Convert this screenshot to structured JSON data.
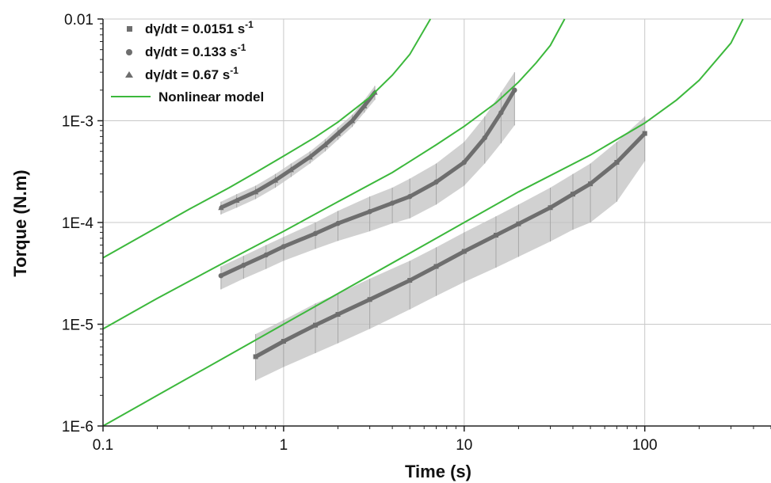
{
  "chart_data": {
    "type": "scatter",
    "title": "",
    "xlabel": "Time (s)",
    "ylabel": "Torque (N.m)",
    "xscale": "log",
    "yscale": "log",
    "xlim": [
      0.1,
      500
    ],
    "ylim": [
      1e-06,
      0.01
    ],
    "grid": true,
    "legend_position": "top-left",
    "x_ticks": [
      {
        "value": 0.1,
        "label": "0.1"
      },
      {
        "value": 1,
        "label": "1"
      },
      {
        "value": 10,
        "label": "10"
      },
      {
        "value": 100,
        "label": "100"
      }
    ],
    "y_ticks": [
      {
        "value": 1e-06,
        "label": "1E-6"
      },
      {
        "value": 1e-05,
        "label": "1E-5"
      },
      {
        "value": 0.0001,
        "label": "1E-4"
      },
      {
        "value": 0.001,
        "label": "1E-3"
      },
      {
        "value": 0.01,
        "label": "0.01"
      }
    ],
    "legend": [
      {
        "label_prefix": "dγ/dt = 0.0151 s",
        "label_sup": "-1",
        "marker": "square"
      },
      {
        "label_prefix": "dγ/dt = 0.133 s",
        "label_sup": "-1",
        "marker": "circle"
      },
      {
        "label_prefix": "dγ/dt = 0.67 s",
        "label_sup": "-1",
        "marker": "triangle"
      },
      {
        "label_prefix": "Nonlinear model",
        "label_sup": "",
        "marker": "line"
      }
    ],
    "colors": {
      "data": "#6e6e6e",
      "error_band": "#c2c2c2",
      "model": "#3cb83c",
      "grid": "#c8c8c8"
    },
    "series": [
      {
        "name": "dγ/dt = 0.67 s-1",
        "marker": "triangle",
        "x": [
          0.45,
          0.55,
          0.7,
          0.9,
          1.1,
          1.4,
          1.7,
          2.0,
          2.4,
          2.8,
          3.2
        ],
        "y": [
          0.00014,
          0.000165,
          0.0002,
          0.00026,
          0.00033,
          0.00044,
          0.00058,
          0.00075,
          0.001,
          0.0014,
          0.0019
        ],
        "y_low": [
          0.00012,
          0.00014,
          0.00017,
          0.00022,
          0.00028,
          0.00038,
          0.0005,
          0.00065,
          0.00087,
          0.0012,
          0.0016
        ],
        "y_high": [
          0.00016,
          0.00019,
          0.00023,
          0.0003,
          0.00038,
          0.0005,
          0.00066,
          0.00086,
          0.00115,
          0.0016,
          0.0022
        ]
      },
      {
        "name": "dγ/dt = 0.133 s-1",
        "marker": "circle",
        "x": [
          0.45,
          0.6,
          0.8,
          1.0,
          1.5,
          2.0,
          3.0,
          4.0,
          5.0,
          7.0,
          10,
          13,
          16,
          19
        ],
        "y": [
          3e-05,
          3.8e-05,
          4.8e-05,
          5.8e-05,
          7.8e-05,
          9.8e-05,
          0.000128,
          0.000155,
          0.00018,
          0.00025,
          0.00039,
          0.00068,
          0.0012,
          0.002
        ],
        "y_low": [
          2.2e-05,
          2.8e-05,
          3.5e-05,
          4.2e-05,
          5.5e-05,
          6.6e-05,
          8.2e-05,
          9.8e-05,
          0.00011,
          0.00015,
          0.00023,
          0.00038,
          0.0006,
          0.0009
        ],
        "y_high": [
          3.7e-05,
          4.7e-05,
          6e-05,
          7.2e-05,
          0.0001,
          0.00013,
          0.00018,
          0.00022,
          0.00027,
          0.00038,
          0.00062,
          0.0011,
          0.0019,
          0.003
        ]
      },
      {
        "name": "dγ/dt = 0.0151 s-1",
        "marker": "square",
        "x": [
          0.7,
          1.0,
          1.5,
          2.0,
          3.0,
          5.0,
          7.0,
          10,
          15,
          20,
          30,
          40,
          50,
          70,
          100
        ],
        "y": [
          4.8e-06,
          6.8e-06,
          9.8e-06,
          1.25e-05,
          1.75e-05,
          2.7e-05,
          3.7e-05,
          5.2e-05,
          7.5e-05,
          9.7e-05,
          0.00014,
          0.00019,
          0.00024,
          0.00039,
          0.00075
        ],
        "y_low": [
          2.8e-06,
          3.8e-06,
          5.2e-06,
          6.5e-06,
          9e-06,
          1.4e-05,
          1.9e-05,
          2.6e-05,
          3.6e-05,
          4.6e-05,
          6.5e-05,
          8.5e-05,
          0.0001,
          0.00016,
          0.0004
        ],
        "y_high": [
          8e-06,
          1.1e-05,
          1.6e-05,
          2e-05,
          2.8e-05,
          4.2e-05,
          5.7e-05,
          8e-05,
          0.000115,
          0.00015,
          0.00022,
          0.0003,
          0.00038,
          0.00062,
          0.0011
        ]
      },
      {
        "name": "Nonlinear model",
        "marker": "line",
        "curves": [
          {
            "x": [
              0.1,
              0.2,
              0.3,
              0.5,
              0.7,
              1.0,
              1.5,
              2.0,
              3.0,
              4.0,
              5.0,
              6.5
            ],
            "y": [
              4.5e-05,
              9e-05,
              0.000135,
              0.00022,
              0.00031,
              0.00045,
              0.00069,
              0.00097,
              0.0017,
              0.0028,
              0.0045,
              0.01
            ]
          },
          {
            "x": [
              0.1,
              0.2,
              0.5,
              1.0,
              2.0,
              4.0,
              7.0,
              10,
              15,
              20,
              25,
              30,
              36
            ],
            "y": [
              9e-06,
              1.8e-05,
              4.3e-05,
              8.2e-05,
              0.00016,
              0.00031,
              0.00058,
              0.00088,
              0.0015,
              0.0024,
              0.0037,
              0.0055,
              0.01
            ]
          },
          {
            "x": [
              0.1,
              0.2,
              0.5,
              1.0,
              2.0,
              5.0,
              10,
              20,
              50,
              100,
              150,
              200,
              300,
              350
            ],
            "y": [
              1e-06,
              2e-06,
              5e-06,
              1e-05,
              2e-05,
              5e-05,
              0.0001,
              0.0002,
              0.00046,
              0.00095,
              0.0016,
              0.0025,
              0.0058,
              0.01
            ]
          }
        ]
      }
    ]
  }
}
